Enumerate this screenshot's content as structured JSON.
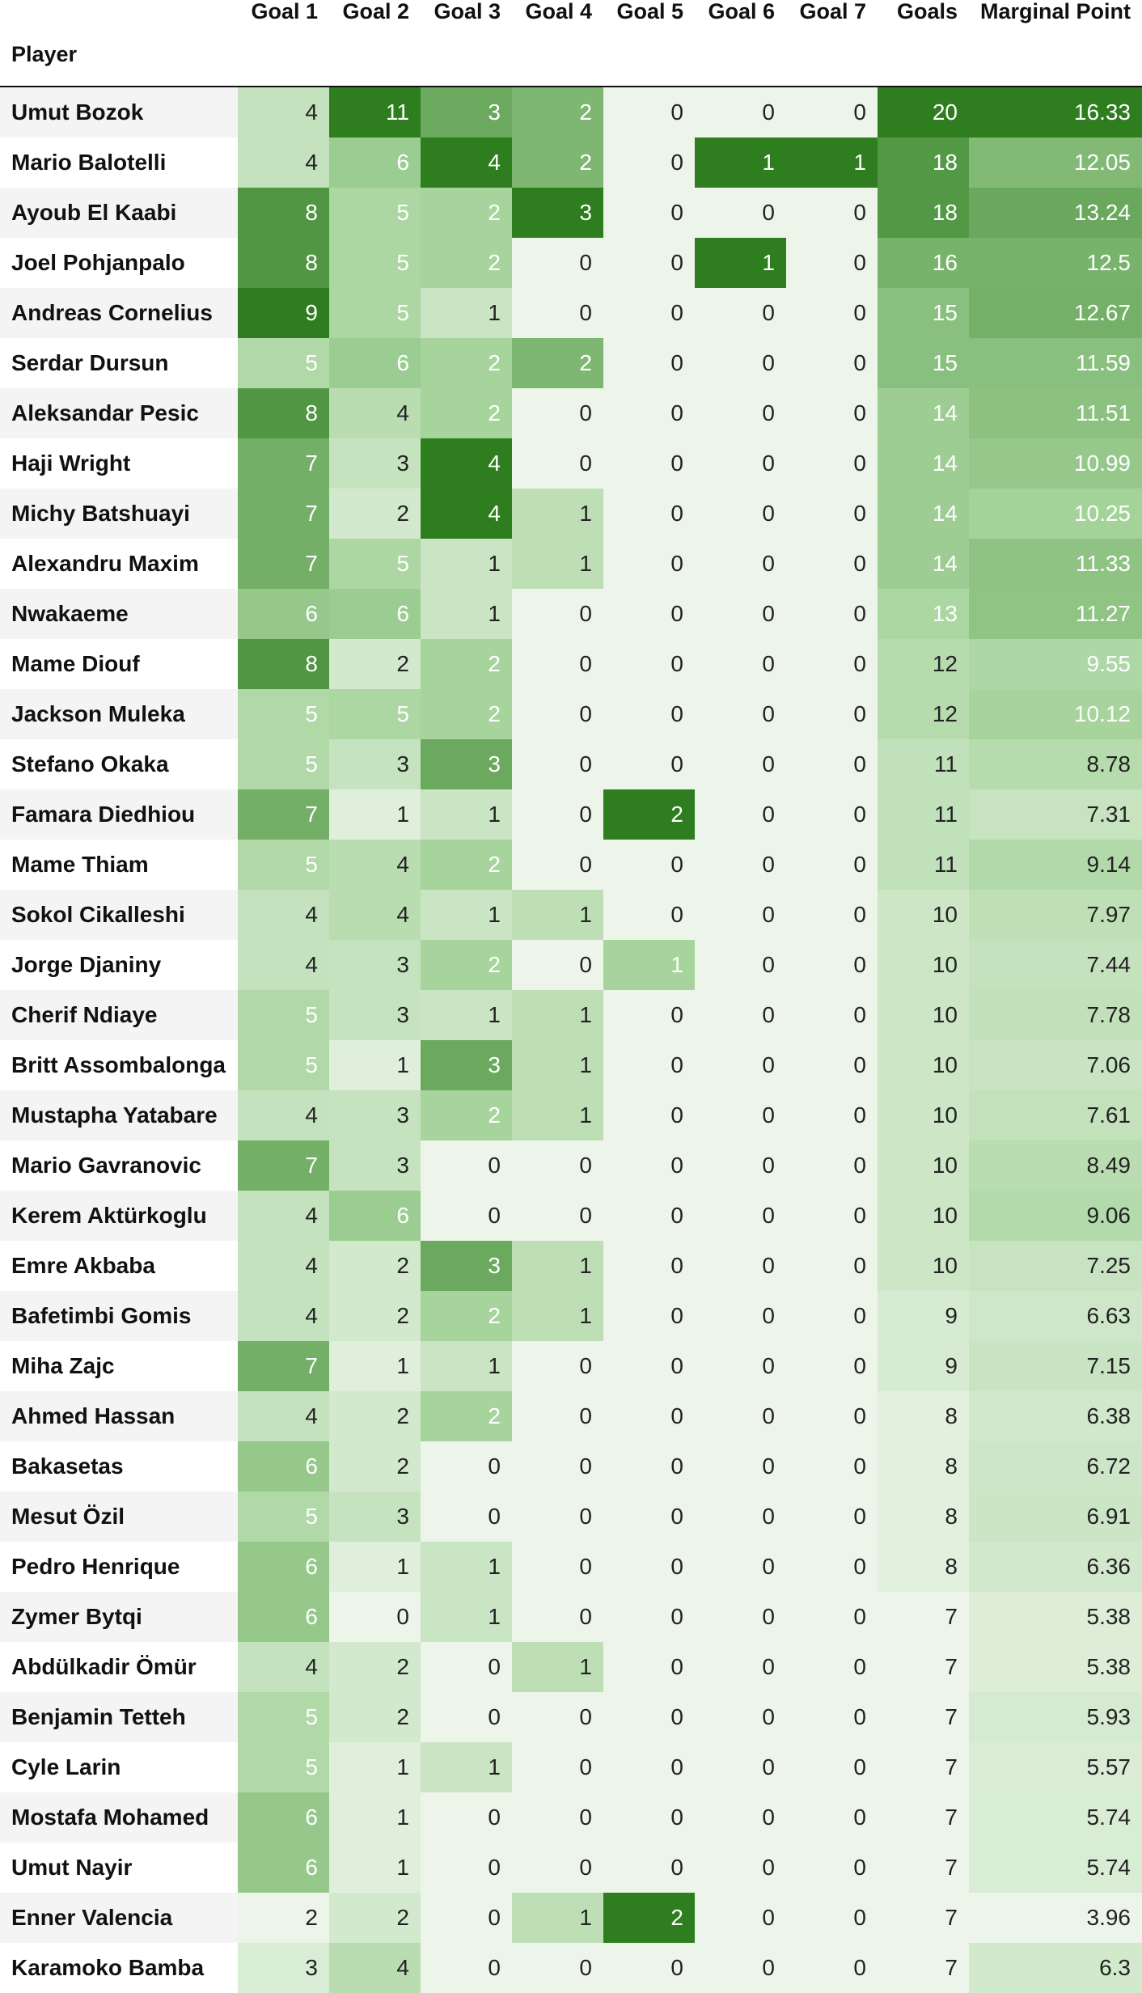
{
  "chart_data": {
    "type": "heatmap",
    "index_name": "Player",
    "columns": [
      "Goal 1",
      "Goal 2",
      "Goal 3",
      "Goal 4",
      "Goal 5",
      "Goal 6",
      "Goal 7",
      "Goals",
      "Marginal Point"
    ],
    "rows": [
      {
        "player": "Umut Bozok",
        "values": [
          4,
          11,
          3,
          2,
          0,
          0,
          0,
          20,
          "16.33"
        ]
      },
      {
        "player": "Mario Balotelli",
        "values": [
          4,
          6,
          4,
          2,
          0,
          1,
          1,
          18,
          "12.05"
        ]
      },
      {
        "player": "Ayoub El Kaabi",
        "values": [
          8,
          5,
          2,
          3,
          0,
          0,
          0,
          18,
          "13.24"
        ]
      },
      {
        "player": "Joel Pohjanpalo",
        "values": [
          8,
          5,
          2,
          0,
          0,
          1,
          0,
          16,
          "12.5"
        ]
      },
      {
        "player": "Andreas Cornelius",
        "values": [
          9,
          5,
          1,
          0,
          0,
          0,
          0,
          15,
          "12.67"
        ]
      },
      {
        "player": "Serdar Dursun",
        "values": [
          5,
          6,
          2,
          2,
          0,
          0,
          0,
          15,
          "11.59"
        ]
      },
      {
        "player": "Aleksandar Pesic",
        "values": [
          8,
          4,
          2,
          0,
          0,
          0,
          0,
          14,
          "11.51"
        ]
      },
      {
        "player": "Haji Wright",
        "values": [
          7,
          3,
          4,
          0,
          0,
          0,
          0,
          14,
          "10.99"
        ]
      },
      {
        "player": "Michy Batshuayi",
        "values": [
          7,
          2,
          4,
          1,
          0,
          0,
          0,
          14,
          "10.25"
        ]
      },
      {
        "player": "Alexandru Maxim",
        "values": [
          7,
          5,
          1,
          1,
          0,
          0,
          0,
          14,
          "11.33"
        ]
      },
      {
        "player": "Nwakaeme",
        "values": [
          6,
          6,
          1,
          0,
          0,
          0,
          0,
          13,
          "11.27"
        ]
      },
      {
        "player": "Mame Diouf",
        "values": [
          8,
          2,
          2,
          0,
          0,
          0,
          0,
          12,
          "9.55"
        ]
      },
      {
        "player": "Jackson Muleka",
        "values": [
          5,
          5,
          2,
          0,
          0,
          0,
          0,
          12,
          "10.12"
        ]
      },
      {
        "player": "Stefano Okaka",
        "values": [
          5,
          3,
          3,
          0,
          0,
          0,
          0,
          11,
          "8.78"
        ]
      },
      {
        "player": "Famara Diedhiou",
        "values": [
          7,
          1,
          1,
          0,
          2,
          0,
          0,
          11,
          "7.31"
        ]
      },
      {
        "player": "Mame Thiam",
        "values": [
          5,
          4,
          2,
          0,
          0,
          0,
          0,
          11,
          "9.14"
        ]
      },
      {
        "player": "Sokol Cikalleshi",
        "values": [
          4,
          4,
          1,
          1,
          0,
          0,
          0,
          10,
          "7.97"
        ]
      },
      {
        "player": "Jorge Djaniny",
        "values": [
          4,
          3,
          2,
          0,
          1,
          0,
          0,
          10,
          "7.44"
        ]
      },
      {
        "player": "Cherif Ndiaye",
        "values": [
          5,
          3,
          1,
          1,
          0,
          0,
          0,
          10,
          "7.78"
        ]
      },
      {
        "player": "Britt Assombalonga",
        "values": [
          5,
          1,
          3,
          1,
          0,
          0,
          0,
          10,
          "7.06"
        ]
      },
      {
        "player": "Mustapha Yatabare",
        "values": [
          4,
          3,
          2,
          1,
          0,
          0,
          0,
          10,
          "7.61"
        ]
      },
      {
        "player": "Mario Gavranovic",
        "values": [
          7,
          3,
          0,
          0,
          0,
          0,
          0,
          10,
          "8.49"
        ]
      },
      {
        "player": "Kerem Aktürkoglu",
        "values": [
          4,
          6,
          0,
          0,
          0,
          0,
          0,
          10,
          "9.06"
        ]
      },
      {
        "player": "Emre Akbaba",
        "values": [
          4,
          2,
          3,
          1,
          0,
          0,
          0,
          10,
          "7.25"
        ]
      },
      {
        "player": "Bafetimbi Gomis",
        "values": [
          4,
          2,
          2,
          1,
          0,
          0,
          0,
          9,
          "6.63"
        ]
      },
      {
        "player": "Miha Zajc",
        "values": [
          7,
          1,
          1,
          0,
          0,
          0,
          0,
          9,
          "7.15"
        ]
      },
      {
        "player": "Ahmed Hassan",
        "values": [
          4,
          2,
          2,
          0,
          0,
          0,
          0,
          8,
          "6.38"
        ]
      },
      {
        "player": "Bakasetas",
        "values": [
          6,
          2,
          0,
          0,
          0,
          0,
          0,
          8,
          "6.72"
        ]
      },
      {
        "player": "Mesut Özil",
        "values": [
          5,
          3,
          0,
          0,
          0,
          0,
          0,
          8,
          "6.91"
        ]
      },
      {
        "player": "Pedro Henrique",
        "values": [
          6,
          1,
          1,
          0,
          0,
          0,
          0,
          8,
          "6.36"
        ]
      },
      {
        "player": "Zymer Bytqi",
        "values": [
          6,
          0,
          1,
          0,
          0,
          0,
          0,
          7,
          "5.38"
        ]
      },
      {
        "player": "Abdülkadir Ömür",
        "values": [
          4,
          2,
          0,
          1,
          0,
          0,
          0,
          7,
          "5.38"
        ]
      },
      {
        "player": "Benjamin Tetteh",
        "values": [
          5,
          2,
          0,
          0,
          0,
          0,
          0,
          7,
          "5.93"
        ]
      },
      {
        "player": "Cyle Larin",
        "values": [
          5,
          1,
          1,
          0,
          0,
          0,
          0,
          7,
          "5.57"
        ]
      },
      {
        "player": "Mostafa Mohamed",
        "values": [
          6,
          1,
          0,
          0,
          0,
          0,
          0,
          7,
          "5.74"
        ]
      },
      {
        "player": "Umut Nayir",
        "values": [
          6,
          1,
          0,
          0,
          0,
          0,
          0,
          7,
          "5.74"
        ]
      },
      {
        "player": "Enner Valencia",
        "values": [
          2,
          2,
          0,
          1,
          2,
          0,
          0,
          7,
          "3.96"
        ]
      },
      {
        "player": "Karamoko Bamba",
        "values": [
          3,
          4,
          0,
          0,
          0,
          0,
          0,
          7,
          "6.3"
        ]
      }
    ],
    "colormap": {
      "low": "#edf5ea",
      "mid": "#a6d49c",
      "high": "#2e7d1f",
      "dark_text": "#222222",
      "light_text": "#ffffff"
    }
  }
}
